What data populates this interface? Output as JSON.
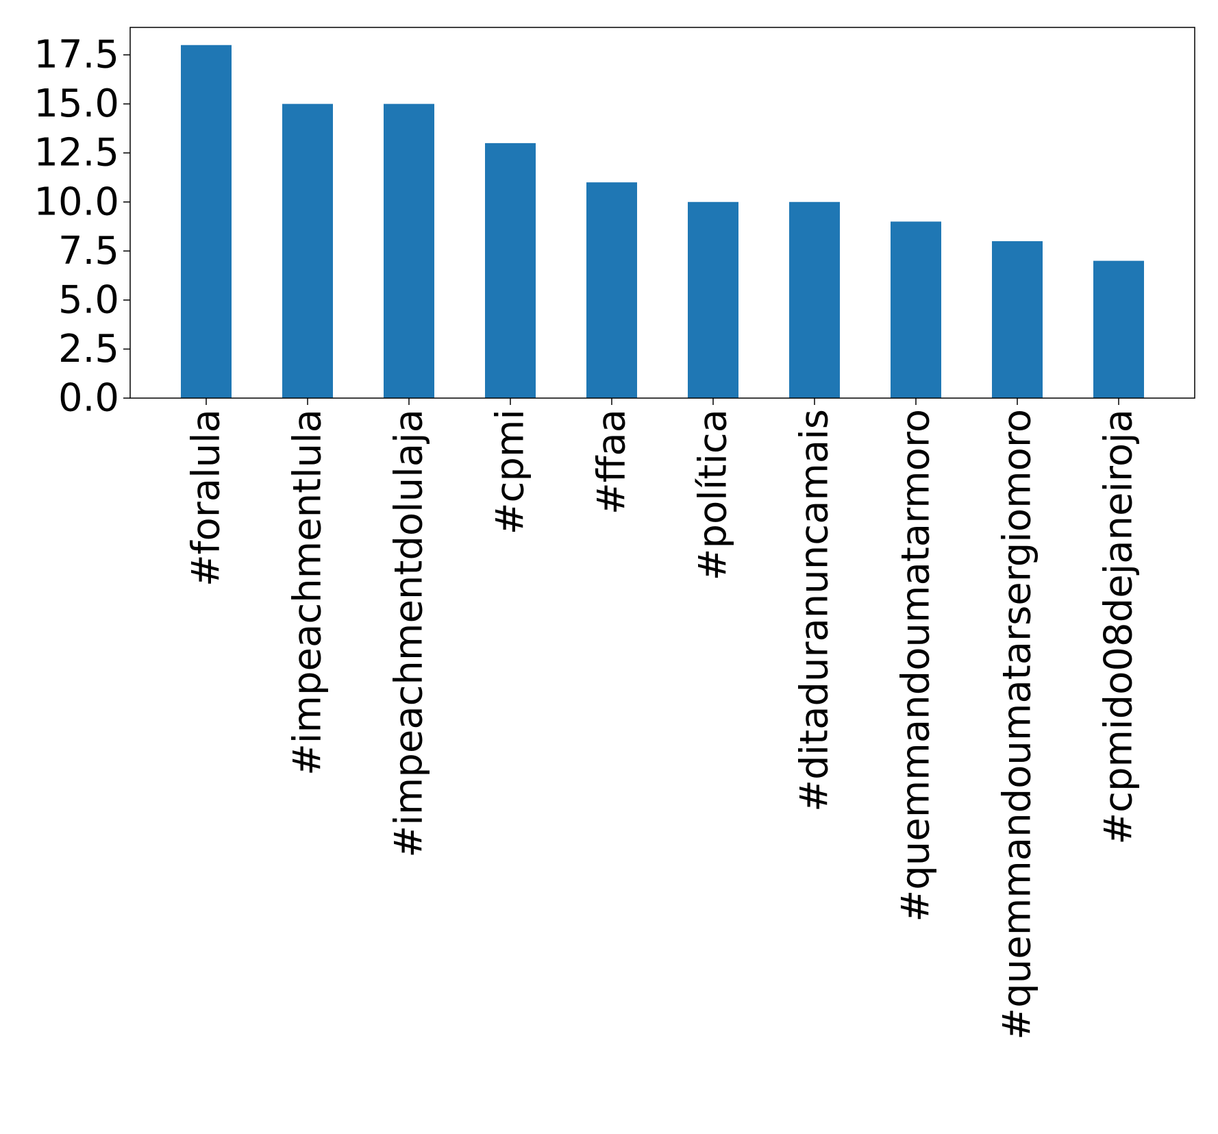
{
  "chart_data": {
    "type": "bar",
    "title": "",
    "xlabel": "",
    "ylabel": "",
    "categories": [
      "#foralula",
      "#impeachmentlula",
      "#impeachmentdolulaja",
      "#cpmi",
      "#ffaa",
      "#política",
      "#ditaduranuncamais",
      "#quemmandoumatarmoro",
      "#quemmandoumatarsergiomoro",
      "#cpmido08dejaneiroja"
    ],
    "values": [
      18,
      15,
      15,
      13,
      11,
      10,
      10,
      9,
      8,
      7
    ],
    "ylim": [
      0,
      18.9
    ],
    "yticks": [
      "0.0",
      "2.5",
      "5.0",
      "7.5",
      "10.0",
      "12.5",
      "15.0",
      "17.5"
    ],
    "bar_color": "#1f77b4",
    "grid": false,
    "legend": "none"
  }
}
